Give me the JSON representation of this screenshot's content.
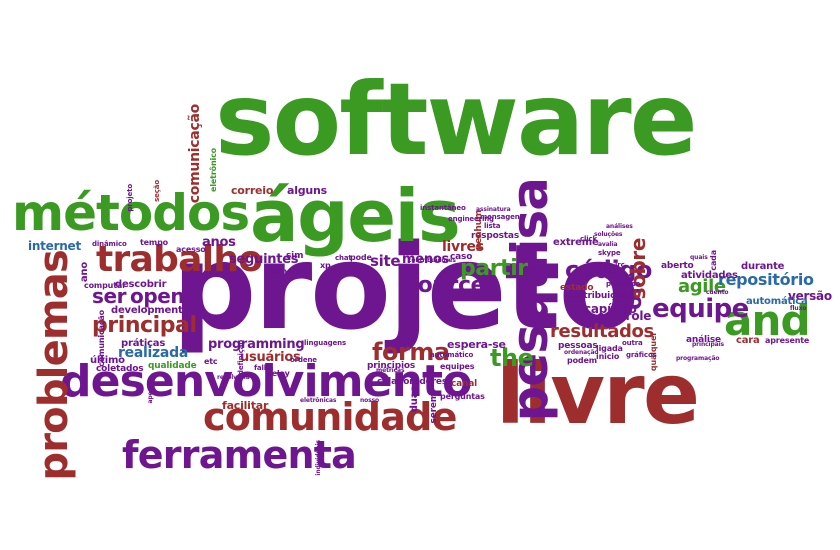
{
  "colors": {
    "green": "#3a9a22",
    "purple": "#6e1590",
    "red": "#9e2e2e",
    "blue": "#2a6aa8",
    "background": "#ffffff"
  },
  "words": {
    "software": "software",
    "projeto": "projeto",
    "livre": "livre",
    "desenvolvimento": "desenvolvimento",
    "metodos": "métodos",
    "ageis": "ágeis",
    "pesquisa": "pesquisa",
    "comunidade": "comunidade",
    "ferramenta": "ferramenta",
    "problemas": "problemas",
    "trabalho": "trabalho",
    "and": "and",
    "equipe": "equipe",
    "codigo": "código",
    "forma": "forma",
    "principal": "principal",
    "resultados": "resultados",
    "partir": "partir",
    "source": "source",
    "open": "open",
    "ser": "ser",
    "the": "the",
    "of": "of",
    "agile": "agile",
    "repositorio": "repositório",
    "sobre": "sobre",
    "site": "site",
    "livres": "livres",
    "realizada": "realizada",
    "programming": "programming",
    "usuarios": "usuários",
    "internet": "internet",
    "comunicacao": "comunicação",
    "anos": "anos",
    "seguintes": "seguintes",
    "menos": "menos",
    "capitulo": "capítulo",
    "controle": "controle",
    "versao": "versão",
    "automatica": "automática",
    "atividades": "atividades",
    "durante": "durante",
    "correio": "correio",
    "alguns": "alguns",
    "eletronico": "eletrônico",
    "development": "development",
    "descobrir": "descobrir",
    "praticas": "práticas",
    "facilitar": "facilitar",
    "espera_se": "espera-se",
    "outro": "outro",
    "extreme": "extreme",
    "cara": "cara",
    "apresente": "apresente",
    "analise": "análise",
    "contribuicoes": "contribuições",
    "estado": "estado",
    "pessoas": "pessoas",
    "principios": "principios",
    "colaboradores": "colaboradores",
    "duas": "duas",
    "canal": "canal",
    "serem": "serem",
    "caso": "caso",
    "respostas": "respostas",
    "nenhum": "nenhum",
    "aberto": "aberto",
    "primeiro": "primeiro",
    "ultimo": "último",
    "qualidade": "qualidade",
    "coletados": "coletados",
    "ano": "ano",
    "computar": "computar",
    "acesso": "acesso",
    "sim": "sim",
    "pode": "pode",
    "chat": "chat",
    "inicio": "inicio",
    "ligada": "ligada",
    "podem": "podem",
    "processo": "processo",
    "qualquer": "qualquer",
    "cada": "cada",
    "etc": "etc",
    "relay": "relay",
    "ordene": "ordene",
    "falha": "falha",
    "perguntas": "perguntas",
    "equipes": "equipes",
    "automatico": "automático",
    "linguagens": "linguagens",
    "xp": "xp",
    "tempo": "tempo",
    "dinamico": "dinâmico",
    "projeto_small": "projeto",
    "secao": "seção",
    "instantaneo": "instantâneo",
    "mensagens": "mensagens",
    "engineering": "engineering",
    "lista": "lista",
    "contribuidores": "contribuidores",
    "report": "report",
    "outra": "outra",
    "graficos": "gráficos",
    "irc": "irc",
    "skype": "skype",
    "click": "click",
    "avalia": "avalia",
    "mesmo": "mesmo",
    "saber": "saber",
    "cuja": "cuja",
    "papel": "papel",
    "definicao": "definição",
    "resolveria": "resolveria",
    "apenas": "apenas",
    "individuais": "individuais",
    "eletronicas": "eletrônicas",
    "nosso": "nosso",
    "metricas": "métricas",
    "solucoes": "soluções",
    "alvo": "alvo",
    "divulgados": "divulgados",
    "analises": "análises",
    "principais": "principais",
    "logo": "logo",
    "ordenacao": "ordenação",
    "ate": "até",
    "reduziu": "reduziu",
    "fluxo": "fluxo",
    "assinatura": "assinatura",
    "comunicadas": "comunicadas",
    "correspondentes": "correspondentes",
    "quais": "quais",
    "cuento": "cuento",
    "idtc": "idtc",
    "ecu": "ecu",
    "nos": "nos",
    "os": "os",
    "ab": "ab",
    "dia": "dia",
    "dos": "dos",
    "programacao": "programação"
  }
}
